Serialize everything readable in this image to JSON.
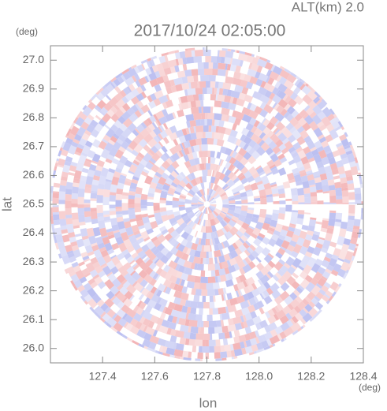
{
  "header": {
    "altitude": "ALT(km) 2.0"
  },
  "chart_data": {
    "type": "ppi",
    "title": "2017/10/24 02:05:00",
    "x_label": "lon",
    "y_label": "lat",
    "x_unit": "(deg)",
    "y_unit": "(deg)",
    "xlim": [
      127.2,
      128.4
    ],
    "ylim": [
      25.95,
      27.05
    ],
    "xticks": [
      127.4,
      127.6,
      127.8,
      {
        "value": 128.0,
        "label": "128.0"
      },
      128.2,
      128.4
    ],
    "yticks": [
      {
        "value": 26.0,
        "label": "26.0"
      },
      26.1,
      26.2,
      26.3,
      26.4,
      26.5,
      26.6,
      26.7,
      26.8,
      26.9,
      {
        "value": 27.0,
        "label": "27.0"
      }
    ]
  }
}
